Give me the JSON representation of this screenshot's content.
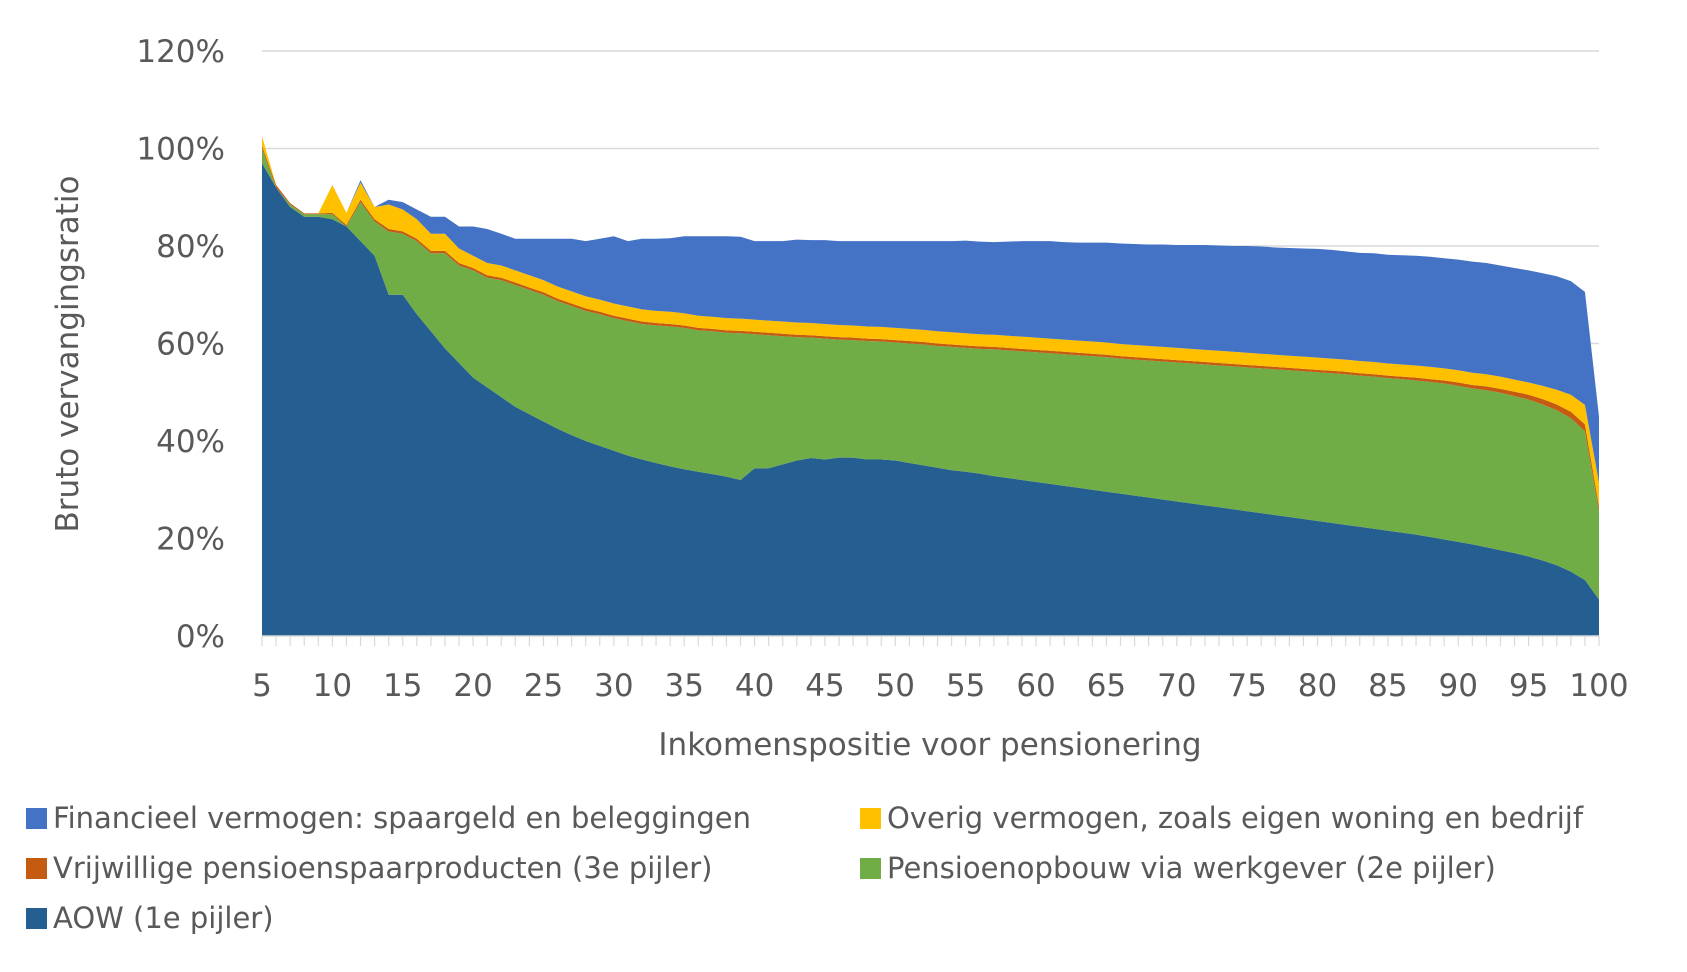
{
  "chart_data": {
    "type": "area",
    "stacked": true,
    "xlabel": "Inkomenspositie voor pensionering",
    "ylabel": "Bruto vervangingsratio",
    "xlim": [
      5,
      100
    ],
    "ylim": [
      0,
      1.2
    ],
    "x_tick_values": [
      5,
      10,
      15,
      20,
      25,
      30,
      35,
      40,
      45,
      50,
      55,
      60,
      65,
      70,
      75,
      80,
      85,
      90,
      95,
      100
    ],
    "y_tick_values": [
      0,
      0.2,
      0.4,
      0.6,
      0.8,
      1.0,
      1.2
    ],
    "y_tick_labels": [
      "0%",
      "20%",
      "40%",
      "60%",
      "80%",
      "100%",
      "120%"
    ],
    "grid": "horizontal",
    "legend_position": "bottom",
    "legend_order": [
      4,
      3,
      2,
      1,
      0
    ],
    "x": [
      5,
      6,
      7,
      8,
      9,
      10,
      11,
      12,
      13,
      14,
      15,
      16,
      17,
      18,
      19,
      20,
      21,
      22,
      23,
      24,
      25,
      26,
      27,
      28,
      29,
      30,
      31,
      32,
      33,
      34,
      35,
      36,
      37,
      38,
      39,
      40,
      41,
      42,
      43,
      44,
      45,
      46,
      47,
      48,
      49,
      50,
      51,
      52,
      53,
      54,
      55,
      56,
      57,
      58,
      59,
      60,
      61,
      62,
      63,
      64,
      65,
      66,
      67,
      68,
      69,
      70,
      71,
      72,
      73,
      74,
      75,
      76,
      77,
      78,
      79,
      80,
      81,
      82,
      83,
      84,
      85,
      86,
      87,
      88,
      89,
      90,
      91,
      92,
      93,
      94,
      95,
      96,
      97,
      98,
      99,
      100
    ],
    "series": [
      {
        "name": "AOW (1e pijler)",
        "color": "#255e91",
        "values": [
          0.97,
          0.92,
          0.88,
          0.86,
          0.86,
          0.855,
          0.84,
          0.81,
          0.78,
          0.7,
          0.7,
          0.66,
          0.625,
          0.59,
          0.56,
          0.53,
          0.51,
          0.49,
          0.47,
          0.455,
          0.44,
          0.425,
          0.412,
          0.4,
          0.39,
          0.38,
          0.37,
          0.362,
          0.355,
          0.348,
          0.342,
          0.337,
          0.332,
          0.327,
          0.32,
          0.344,
          0.344,
          0.352,
          0.36,
          0.365,
          0.362,
          0.366,
          0.366,
          0.362,
          0.362,
          0.36,
          0.355,
          0.35,
          0.345,
          0.34,
          0.337,
          0.333,
          0.328,
          0.324,
          0.32,
          0.316,
          0.312,
          0.308,
          0.304,
          0.3,
          0.296,
          0.292,
          0.288,
          0.284,
          0.28,
          0.276,
          0.272,
          0.268,
          0.264,
          0.26,
          0.256,
          0.252,
          0.248,
          0.244,
          0.24,
          0.236,
          0.232,
          0.228,
          0.224,
          0.22,
          0.216,
          0.212,
          0.208,
          0.203,
          0.198,
          0.193,
          0.188,
          0.182,
          0.176,
          0.17,
          0.163,
          0.155,
          0.145,
          0.132,
          0.115,
          0.075
        ]
      },
      {
        "name": "Pensioenopbouw via werkgever (2e pijler)",
        "color": "#70ad47",
        "values": [
          0.03,
          0.0,
          0.005,
          0.005,
          0.005,
          0.01,
          0.0,
          0.08,
          0.07,
          0.13,
          0.125,
          0.15,
          0.16,
          0.195,
          0.2,
          0.22,
          0.225,
          0.24,
          0.25,
          0.255,
          0.26,
          0.262,
          0.265,
          0.267,
          0.27,
          0.272,
          0.276,
          0.278,
          0.282,
          0.287,
          0.29,
          0.29,
          0.293,
          0.295,
          0.301,
          0.275,
          0.273,
          0.263,
          0.253,
          0.247,
          0.248,
          0.242,
          0.241,
          0.243,
          0.242,
          0.242,
          0.245,
          0.248,
          0.25,
          0.253,
          0.254,
          0.256,
          0.26,
          0.262,
          0.264,
          0.266,
          0.268,
          0.27,
          0.272,
          0.274,
          0.276,
          0.277,
          0.279,
          0.281,
          0.283,
          0.285,
          0.287,
          0.289,
          0.291,
          0.293,
          0.295,
          0.297,
          0.299,
          0.301,
          0.303,
          0.305,
          0.307,
          0.309,
          0.31,
          0.312,
          0.313,
          0.315,
          0.316,
          0.318,
          0.32,
          0.32,
          0.32,
          0.322,
          0.323,
          0.322,
          0.322,
          0.32,
          0.318,
          0.315,
          0.305,
          0.18
        ]
      },
      {
        "name": "Vrijwillige pensioenspaarproducten (3e pijler)",
        "color": "#c55a11",
        "values": [
          0.005,
          0.005,
          0.003,
          0.002,
          0.002,
          0.003,
          0.003,
          0.005,
          0.005,
          0.005,
          0.005,
          0.005,
          0.005,
          0.005,
          0.005,
          0.005,
          0.005,
          0.005,
          0.005,
          0.005,
          0.005,
          0.005,
          0.005,
          0.005,
          0.005,
          0.005,
          0.005,
          0.005,
          0.005,
          0.005,
          0.005,
          0.005,
          0.005,
          0.005,
          0.005,
          0.005,
          0.005,
          0.005,
          0.005,
          0.005,
          0.005,
          0.005,
          0.005,
          0.005,
          0.005,
          0.005,
          0.005,
          0.005,
          0.005,
          0.005,
          0.005,
          0.005,
          0.005,
          0.005,
          0.005,
          0.005,
          0.005,
          0.005,
          0.005,
          0.005,
          0.005,
          0.005,
          0.005,
          0.005,
          0.005,
          0.005,
          0.005,
          0.005,
          0.005,
          0.005,
          0.005,
          0.005,
          0.005,
          0.005,
          0.005,
          0.005,
          0.005,
          0.005,
          0.005,
          0.005,
          0.005,
          0.005,
          0.006,
          0.006,
          0.006,
          0.007,
          0.007,
          0.008,
          0.008,
          0.009,
          0.01,
          0.011,
          0.012,
          0.013,
          0.014,
          0.01
        ]
      },
      {
        "name": "Overig vermogen, zoals eigen woning en bedrijf",
        "color": "#ffc000",
        "values": [
          0.02,
          0.0,
          0.0,
          0.0,
          0.0,
          0.057,
          0.025,
          0.035,
          0.025,
          0.05,
          0.045,
          0.04,
          0.035,
          0.035,
          0.03,
          0.025,
          0.025,
          0.025,
          0.025,
          0.025,
          0.025,
          0.025,
          0.025,
          0.025,
          0.025,
          0.025,
          0.025,
          0.025,
          0.025,
          0.025,
          0.025,
          0.025,
          0.025,
          0.025,
          0.025,
          0.025,
          0.025,
          0.025,
          0.025,
          0.025,
          0.025,
          0.025,
          0.025,
          0.025,
          0.025,
          0.025,
          0.025,
          0.025,
          0.025,
          0.025,
          0.025,
          0.025,
          0.025,
          0.025,
          0.025,
          0.025,
          0.025,
          0.025,
          0.025,
          0.025,
          0.025,
          0.025,
          0.025,
          0.025,
          0.025,
          0.025,
          0.025,
          0.025,
          0.025,
          0.025,
          0.025,
          0.025,
          0.025,
          0.025,
          0.025,
          0.025,
          0.025,
          0.025,
          0.025,
          0.025,
          0.025,
          0.025,
          0.025,
          0.025,
          0.025,
          0.025,
          0.025,
          0.025,
          0.025,
          0.025,
          0.025,
          0.027,
          0.03,
          0.035,
          0.04,
          0.05
        ]
      },
      {
        "name": "Financieel vermogen: spaargeld en beleggingen",
        "color": "#4472c4",
        "values": [
          0.0,
          0.0,
          0.0,
          0.0,
          0.0,
          0.0,
          0.0,
          0.005,
          0.0,
          0.01,
          0.015,
          0.02,
          0.035,
          0.035,
          0.045,
          0.06,
          0.07,
          0.065,
          0.065,
          0.075,
          0.085,
          0.098,
          0.108,
          0.113,
          0.125,
          0.138,
          0.134,
          0.145,
          0.148,
          0.151,
          0.158,
          0.163,
          0.165,
          0.168,
          0.168,
          0.161,
          0.163,
          0.165,
          0.17,
          0.17,
          0.172,
          0.172,
          0.173,
          0.175,
          0.176,
          0.178,
          0.18,
          0.182,
          0.185,
          0.187,
          0.19,
          0.19,
          0.19,
          0.193,
          0.196,
          0.198,
          0.2,
          0.2,
          0.201,
          0.203,
          0.205,
          0.206,
          0.207,
          0.208,
          0.21,
          0.211,
          0.213,
          0.215,
          0.216,
          0.217,
          0.219,
          0.22,
          0.22,
          0.221,
          0.222,
          0.223,
          0.223,
          0.222,
          0.222,
          0.223,
          0.223,
          0.224,
          0.225,
          0.226,
          0.226,
          0.227,
          0.228,
          0.228,
          0.228,
          0.229,
          0.23,
          0.231,
          0.233,
          0.233,
          0.232,
          0.135
        ]
      }
    ]
  }
}
